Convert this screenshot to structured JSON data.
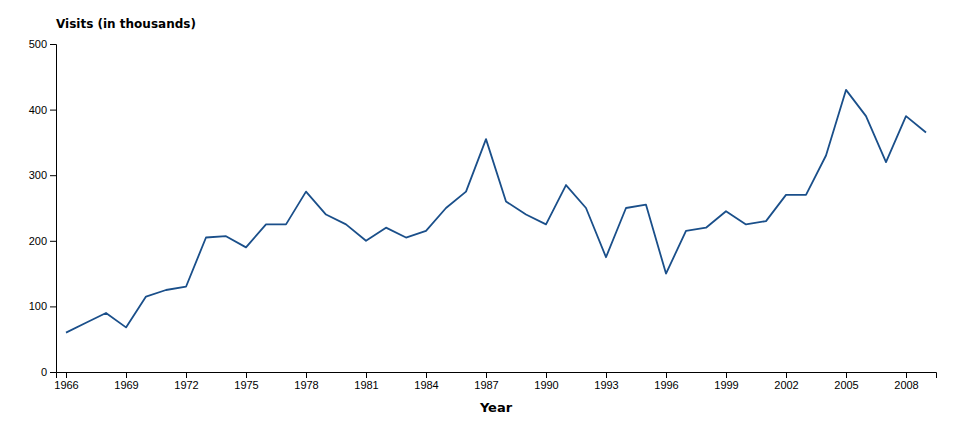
{
  "chart_data": {
    "type": "line",
    "x_label": "Year",
    "y_label": "Visits (in thousands)",
    "x": [
      1966,
      1967,
      1968,
      1969,
      1970,
      1971,
      1972,
      1973,
      1974,
      1975,
      1976,
      1977,
      1978,
      1979,
      1980,
      1981,
      1982,
      1983,
      1984,
      1985,
      1986,
      1987,
      1988,
      1989,
      1990,
      1991,
      1992,
      1993,
      1994,
      1995,
      1996,
      1997,
      1998,
      1999,
      2000,
      2001,
      2002,
      2003,
      2004,
      2005,
      2006,
      2007,
      2008,
      2009
    ],
    "values": [
      60,
      75,
      90,
      68,
      115,
      125,
      130,
      205,
      207,
      190,
      225,
      225,
      275,
      240,
      225,
      200,
      220,
      205,
      215,
      250,
      275,
      355,
      260,
      240,
      225,
      285,
      250,
      175,
      250,
      255,
      150,
      215,
      220,
      245,
      225,
      230,
      270,
      270,
      330,
      430,
      390,
      320,
      390,
      365
    ],
    "color": "#1a4f8a",
    "xlim": [
      1965.5,
      2009.5
    ],
    "xticks": [
      1966,
      1969,
      1972,
      1975,
      1978,
      1981,
      1984,
      1987,
      1990,
      1993,
      1996,
      1999,
      2002,
      2005,
      2008
    ],
    "ylim": [
      0,
      500
    ],
    "yticks": [
      0,
      100,
      200,
      300,
      400,
      500
    ],
    "grid": false
  }
}
